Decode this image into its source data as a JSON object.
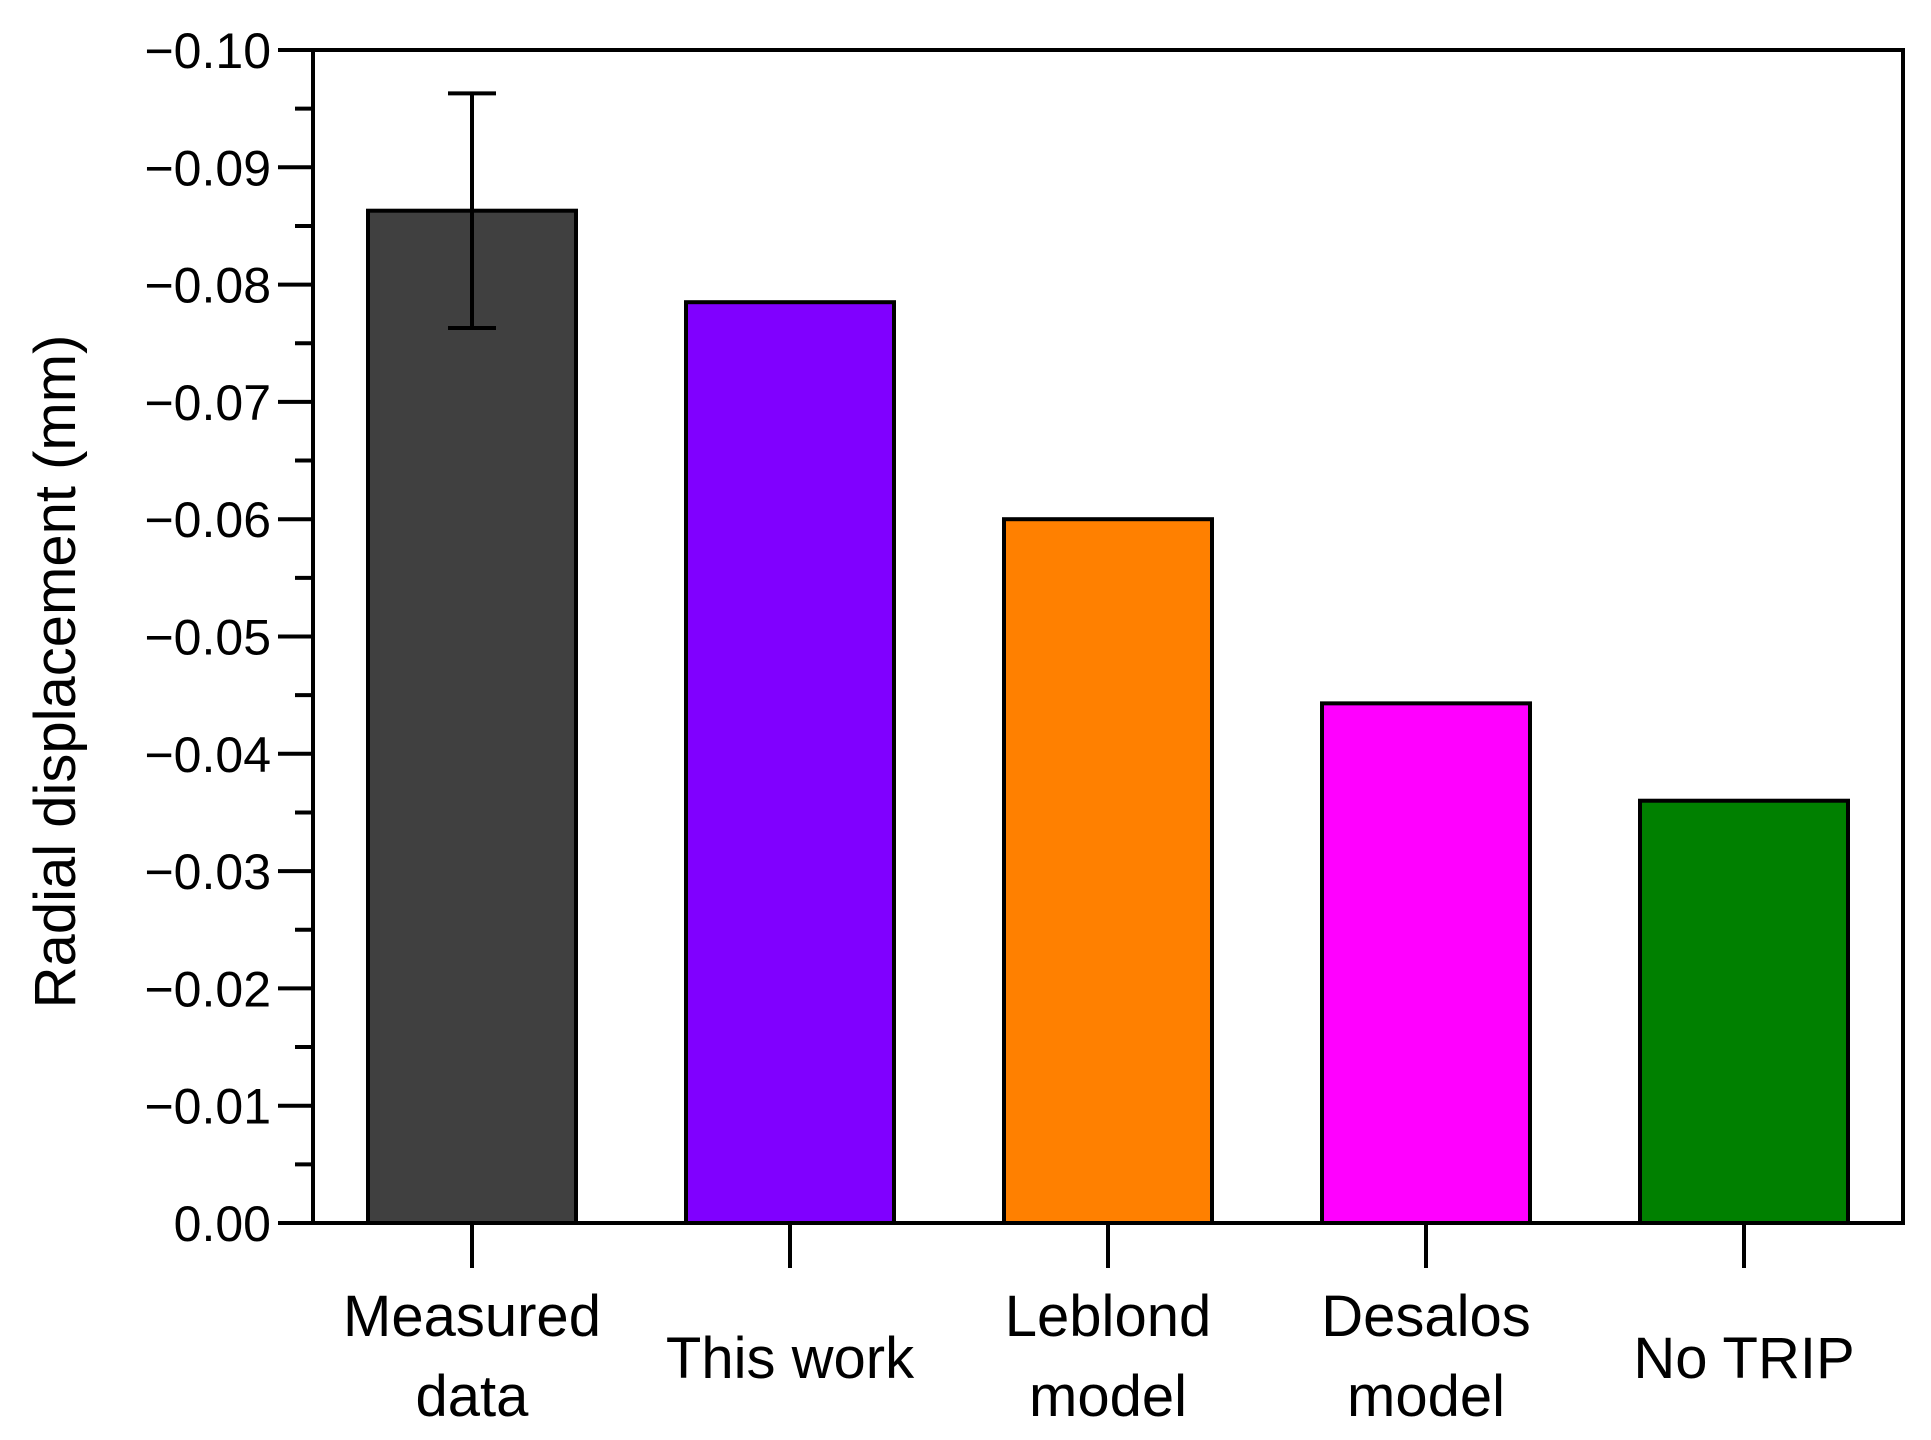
{
  "chart_data": {
    "type": "bar",
    "title": "",
    "xlabel": "",
    "ylabel": "Radial displacement (mm)",
    "ylim": [
      0,
      -0.1
    ],
    "y_axis_inverted": true,
    "y_ticks": [
      {
        "value": 0.0,
        "label": "0.00"
      },
      {
        "value": -0.01,
        "label": "−0.01"
      },
      {
        "value": -0.02,
        "label": "−0.02"
      },
      {
        "value": -0.03,
        "label": "−0.03"
      },
      {
        "value": -0.04,
        "label": "−0.04"
      },
      {
        "value": -0.05,
        "label": "−0.05"
      },
      {
        "value": -0.06,
        "label": "−0.06"
      },
      {
        "value": -0.07,
        "label": "−0.07"
      },
      {
        "value": -0.08,
        "label": "−0.08"
      },
      {
        "value": -0.09,
        "label": "−0.09"
      },
      {
        "value": -0.1,
        "label": "−0.10"
      }
    ],
    "categories": [
      {
        "lines": [
          "Measured",
          "data"
        ],
        "value": -0.0863,
        "color": "#404040",
        "error": 0.01
      },
      {
        "lines": [
          "This work"
        ],
        "value": -0.0785,
        "color": "#8000ff"
      },
      {
        "lines": [
          "Leblond",
          "model"
        ],
        "value": -0.06,
        "color": "#ff8000"
      },
      {
        "lines": [
          "Desalos",
          "model"
        ],
        "value": -0.0443,
        "color": "#ff00ff"
      },
      {
        "lines": [
          "No TRIP"
        ],
        "value": -0.036,
        "color": "#008000"
      }
    ],
    "grid": false,
    "legend": "none"
  }
}
